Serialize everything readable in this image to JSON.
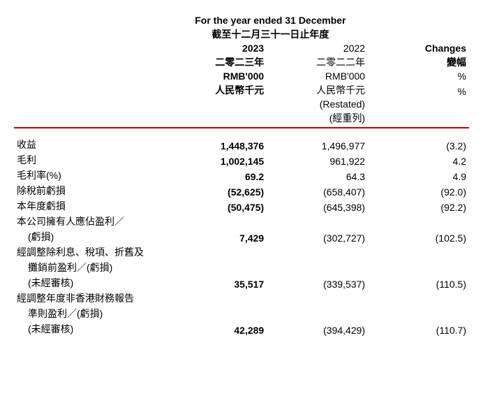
{
  "colors": {
    "rule": "#c00000",
    "text": "#000000",
    "background": "#ffffff"
  },
  "header": {
    "super_en": "For the year ended 31 December",
    "super_zh": "截至十二月三十一日止年度",
    "y1": {
      "year": "2023",
      "year_zh": "二零二三年",
      "unit_en": "RMB'000",
      "unit_zh": "人民幣千元"
    },
    "y2": {
      "year": "2022",
      "year_zh": "二零二二年",
      "unit_en": "RMB'000",
      "unit_zh": "人民幣千元",
      "restated_en": "(Restated)",
      "restated_zh": "(經重列)"
    },
    "chg": {
      "label_en": "Changes",
      "label_zh": "變幅",
      "unit1": "%",
      "unit2": "%"
    }
  },
  "rows": [
    {
      "label": "收益",
      "y1": "1,448,376",
      "y2": "1,496,977",
      "chg": "(3.2)"
    },
    {
      "label": "毛利",
      "y1": "1,002,145",
      "y2": "961,922",
      "chg": "4.2"
    },
    {
      "label": "毛利率(%)",
      "y1": "69.2",
      "y2": "64.3",
      "chg": "4.9"
    },
    {
      "label": "除稅前虧損",
      "y1": "(52,625)",
      "y2": "(658,407)",
      "chg": "(92.0)"
    },
    {
      "label": "本年度虧損",
      "y1": "(50,475)",
      "y2": "(645,398)",
      "chg": "(92.2)"
    }
  ],
  "row_owner": {
    "l1": "本公司擁有人應佔盈利／",
    "l2": "(虧損)",
    "y1": "7,429",
    "y2": "(302,727)",
    "chg": "(102.5)"
  },
  "row_ebitda": {
    "l1": "經調整除利息、稅項、折舊及",
    "l2": "攤銷前盈利／(虧損)",
    "l3": "(未經審核)",
    "y1": "35,517",
    "y2": "(339,537)",
    "chg": "(110.5)"
  },
  "row_nonhk": {
    "l1": "經調整年度非香港財務報告",
    "l2": "準則盈利／(虧損)",
    "l3": "(未經審核)",
    "y1": "42,289",
    "y2": "(394,429)",
    "chg": "(110.7)"
  }
}
